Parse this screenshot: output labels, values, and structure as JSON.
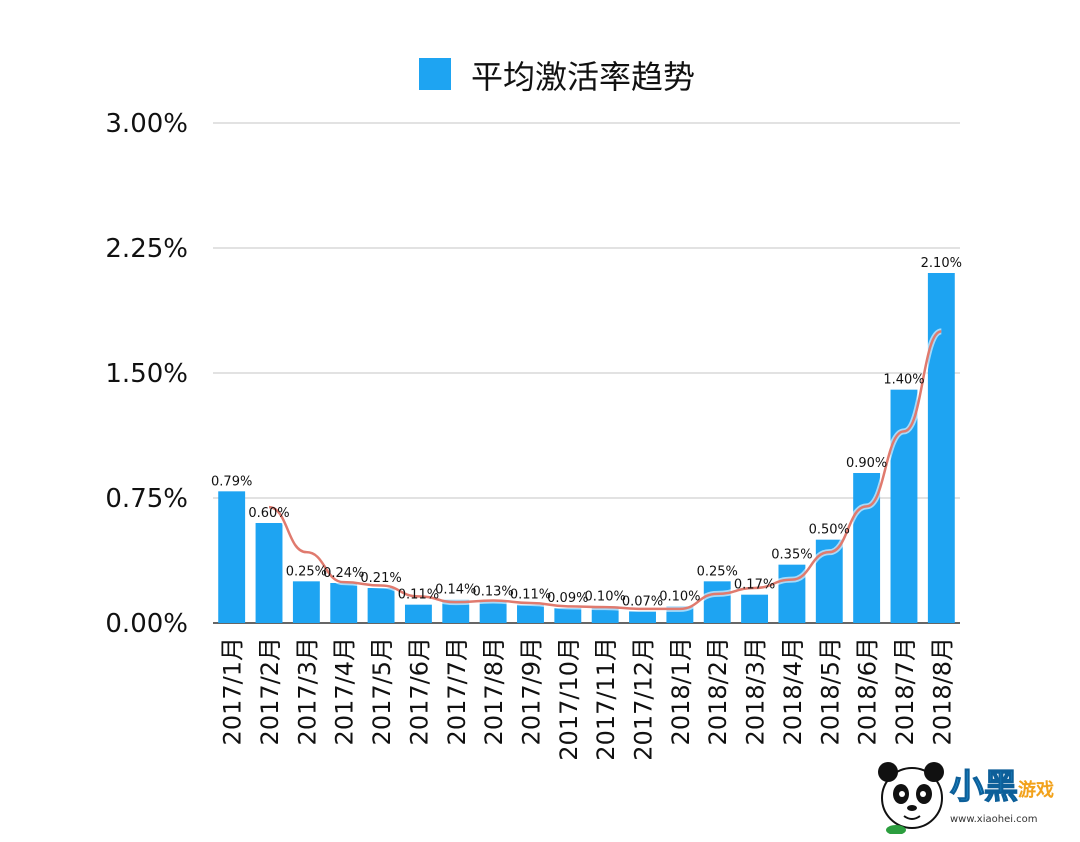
{
  "chart_data": {
    "type": "bar",
    "title": "",
    "legend": {
      "label": "平均激活率趋势",
      "position": "top-center"
    },
    "xlabel": "",
    "ylabel": "",
    "ylim": [
      0,
      3.0
    ],
    "yticks": [
      "0.00%",
      "0.75%",
      "1.50%",
      "2.25%",
      "3.00%"
    ],
    "ytick_values": [
      0,
      0.75,
      1.5,
      2.25,
      3.0
    ],
    "grid": true,
    "categories": [
      "2017/1月",
      "2017/2月",
      "2017/3月",
      "2017/4月",
      "2017/5月",
      "2017/6月",
      "2017/7月",
      "2017/8月",
      "2017/9月",
      "2017/10月",
      "2017/11月",
      "2017/12月",
      "2018/1月",
      "2018/2月",
      "2018/3月",
      "2018/4月",
      "2018/5月",
      "2018/6月",
      "2018/7月",
      "2018/8月"
    ],
    "values": [
      0.79,
      0.6,
      0.25,
      0.24,
      0.21,
      0.11,
      0.14,
      0.13,
      0.11,
      0.09,
      0.1,
      0.07,
      0.1,
      0.25,
      0.17,
      0.35,
      0.5,
      0.9,
      1.4,
      2.1
    ],
    "data_labels": [
      "0.79%",
      "0.60%",
      "0.25%",
      "0.24%",
      "0.21%",
      "0.11%",
      "0.14%",
      "0.13%",
      "0.11%",
      "0.09%",
      "0.10%",
      "0.07%",
      "0.10%",
      "0.25%",
      "0.17%",
      "0.35%",
      "0.50%",
      "0.90%",
      "1.40%",
      "2.10%"
    ],
    "trendline": {
      "type": "moving-average",
      "period": 2,
      "color": "#e07a6e"
    },
    "colors": {
      "bar": "#1ea4f2",
      "grid": "#c4c4c4",
      "axis": "#333333",
      "text": "#111111"
    }
  },
  "watermark": {
    "name": "小黑游戏",
    "url": "www.xiaohei.com"
  }
}
